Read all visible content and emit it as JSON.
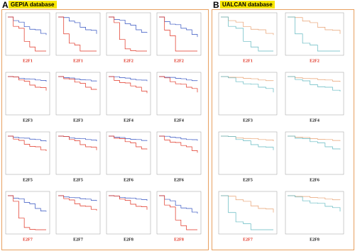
{
  "panels": [
    {
      "label": "A",
      "title": "GEPIA database",
      "items": [
        {
          "gene": "E2F1",
          "significant": true
        },
        {
          "gene": "E2F1",
          "significant": true
        },
        {
          "gene": "E2F2",
          "significant": true
        },
        {
          "gene": "E2F2",
          "significant": true
        },
        {
          "gene": "E2F3",
          "significant": false
        },
        {
          "gene": "E2F3",
          "significant": false
        },
        {
          "gene": "E2F4",
          "significant": false
        },
        {
          "gene": "E2F4",
          "significant": false
        },
        {
          "gene": "E2F5",
          "significant": false
        },
        {
          "gene": "E2F5",
          "significant": false
        },
        {
          "gene": "E2F6",
          "significant": false
        },
        {
          "gene": "E2F6",
          "significant": false
        },
        {
          "gene": "E2F7",
          "significant": true
        },
        {
          "gene": "E2F7",
          "significant": false
        },
        {
          "gene": "E2F8",
          "significant": false
        },
        {
          "gene": "E2F8",
          "significant": true
        }
      ]
    },
    {
      "label": "B",
      "title": "UALCAN database",
      "items": [
        {
          "gene": "E2F1",
          "significant": true
        },
        {
          "gene": "E2F2",
          "significant": true
        },
        {
          "gene": "E2F3",
          "significant": false
        },
        {
          "gene": "E2F4",
          "significant": false
        },
        {
          "gene": "E2F5",
          "significant": false
        },
        {
          "gene": "E2F6",
          "significant": false
        },
        {
          "gene": "E2F7",
          "significant": true
        },
        {
          "gene": "E2F8",
          "significant": false
        }
      ]
    }
  ]
}
